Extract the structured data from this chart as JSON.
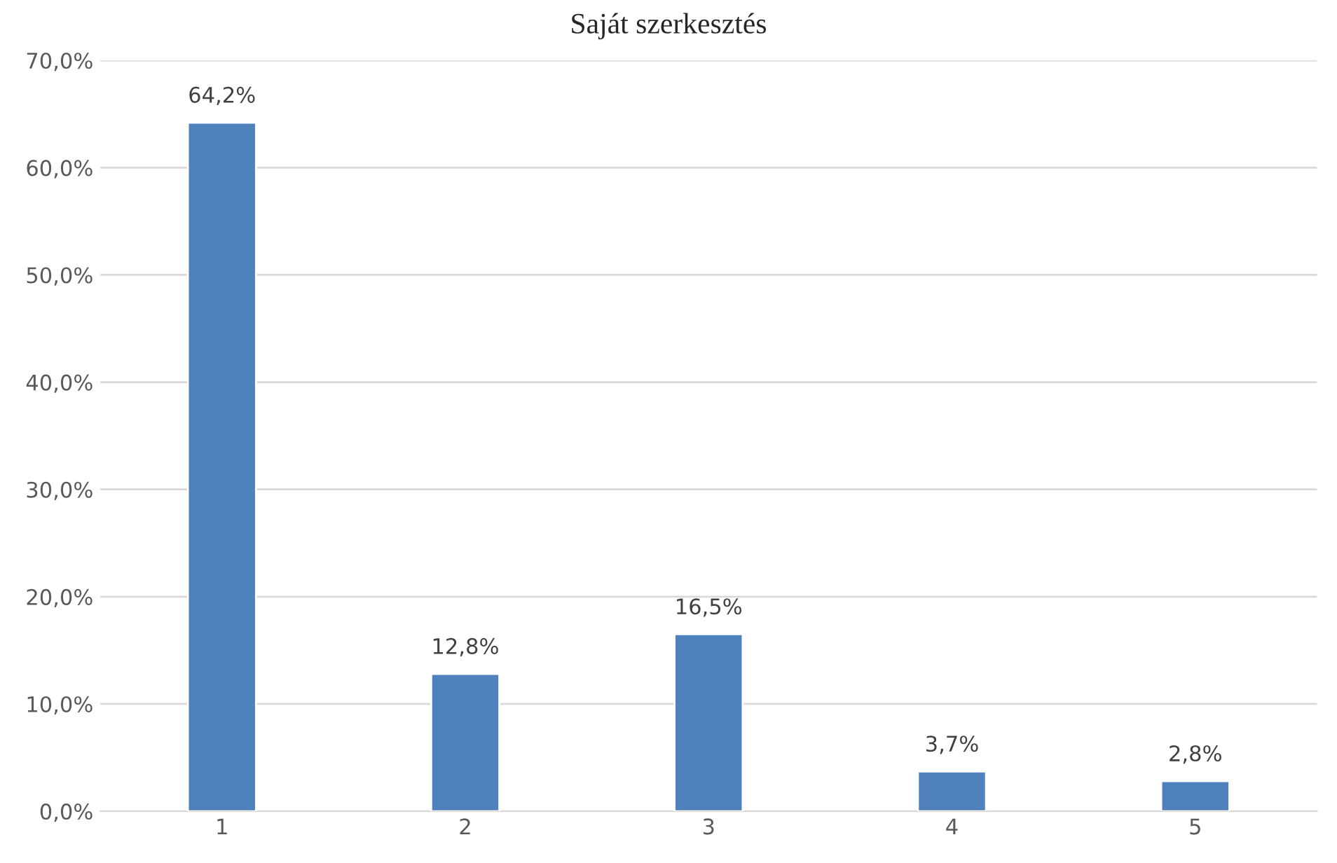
{
  "chart_data": {
    "type": "bar",
    "title": "Saját szerkesztés",
    "categories": [
      "1",
      "2",
      "3",
      "4",
      "5"
    ],
    "values": [
      64.2,
      12.8,
      16.5,
      3.7,
      2.8
    ],
    "value_labels": [
      "64,2%",
      "12,8%",
      "16,5%",
      "3,7%",
      "2,8%"
    ],
    "color": "#4f81bd",
    "ylim": [
      0,
      70
    ],
    "yticks": [
      {
        "value": 0,
        "label": "0,0%"
      },
      {
        "value": 10,
        "label": "10,0%"
      },
      {
        "value": 20,
        "label": "20,0%"
      },
      {
        "value": 30,
        "label": "30,0%"
      },
      {
        "value": 40,
        "label": "40,0%"
      },
      {
        "value": 50,
        "label": "50,0%"
      },
      {
        "value": 60,
        "label": "60,0%"
      },
      {
        "value": 70,
        "label": "70,0%"
      }
    ],
    "grid": "y"
  }
}
